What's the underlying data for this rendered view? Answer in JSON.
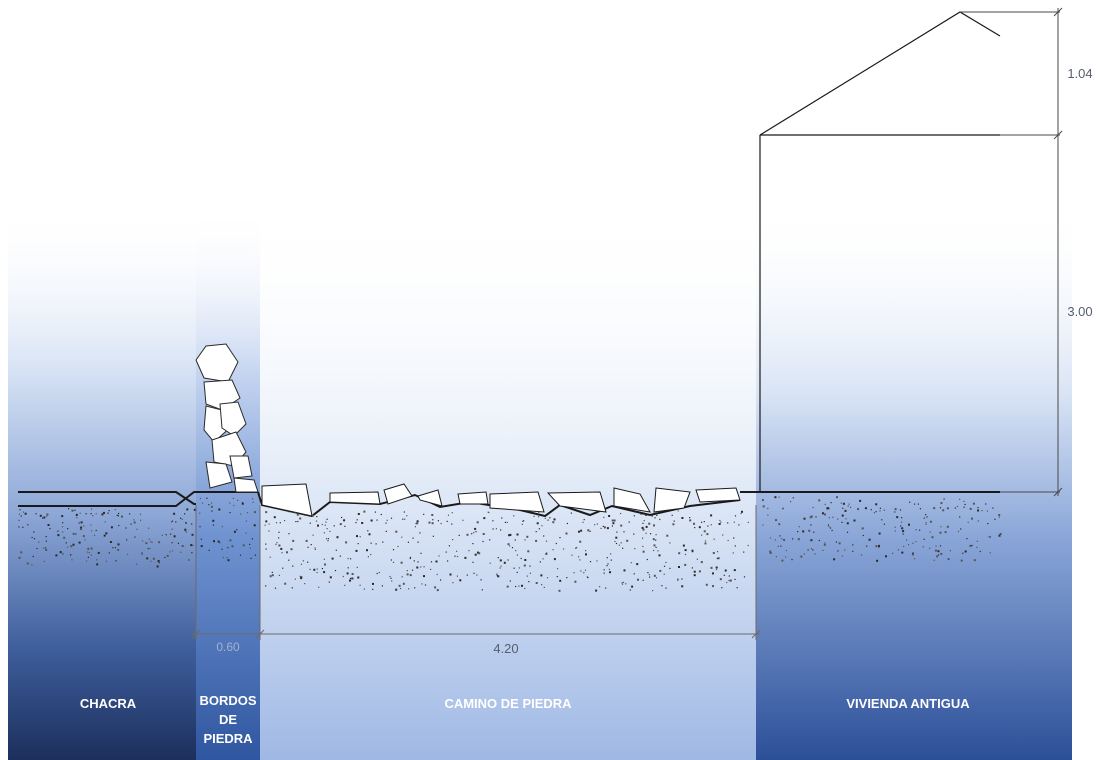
{
  "zones": {
    "chacra": "CHACRA",
    "bordos": [
      "BORDOS",
      "DE",
      "PIEDRA"
    ],
    "camino": "CAMINO DE PIEDRA",
    "vivienda": "VIVIENDA ANTIGUA"
  },
  "dimensions": {
    "roof_height": "1.04",
    "wall_height": "3.00",
    "road_width": "4.20",
    "bordo_width": "0.60"
  },
  "colors": {
    "dark_band": "#1e3566",
    "mid_band": "#2f5ba8",
    "light_band": "#a9bfe6",
    "line": "#1a1a1a",
    "dim_line": "#6b6b6b"
  }
}
